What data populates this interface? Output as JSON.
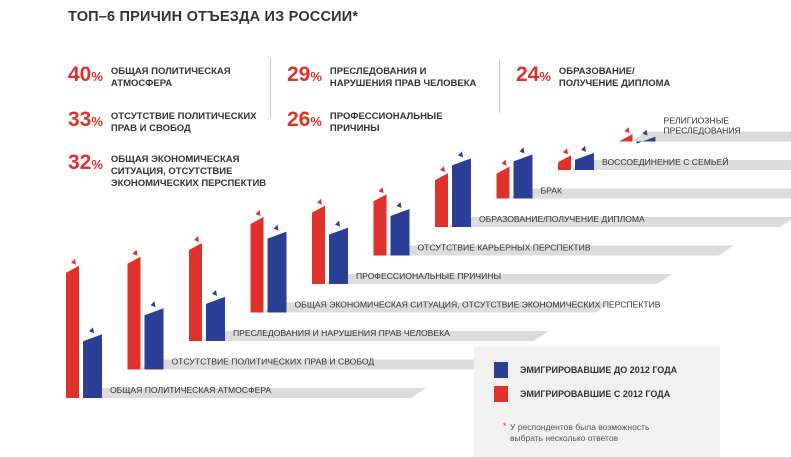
{
  "title": "ТОП–6 ПРИЧИН ОТЪЕЗДА ИЗ РОССИИ*",
  "top_reasons": [
    {
      "value": "40",
      "unit": "%",
      "label": "ОБЩАЯ ПОЛИТИЧЕСКАЯ\nАТМОСФЕРА"
    },
    {
      "value": "33",
      "unit": "%",
      "label": "ОТСУТСТВИЕ ПОЛИТИЧЕСКИХ\nПРАВ И СВОБОД"
    },
    {
      "value": "32",
      "unit": "%",
      "label": "ОБЩАЯ ЭКОНОМИЧЕСКАЯ\nСИТУАЦИЯ, ОТСУТСТВИЕ\nЭКОНОМИЧЕСКИХ ПЕРСПЕКТИВ"
    },
    {
      "value": "29",
      "unit": "%",
      "label": "ПРЕСЛЕДОВАНИЯ И\nНАРУШЕНИЯ ПРАВ ЧЕЛОВЕКА"
    },
    {
      "value": "26",
      "unit": "%",
      "label": "ПРОФЕССИОНАЛЬНЫЕ\nПРИЧИНЫ"
    },
    {
      "value": "24",
      "unit": "%",
      "label": "ОБРАЗОВАНИЕ/\nПОЛУЧЕНИЕ ДИПЛОМА"
    }
  ],
  "legend": {
    "before": "ЭМИГРИРОВАВШИЕ ДО 2012 ГОДА",
    "after": "ЭМИГРИРОВАВШИЕ С 2012 ГОДА",
    "note_star": "*",
    "note": "У респондентов была возможность\nвыбрать несколько ответов"
  },
  "colors": {
    "before": "#2a3f95",
    "after": "#e0322d",
    "shadow": "#dcdcdc",
    "label": "#333333"
  },
  "chart_data": {
    "type": "bar",
    "categories": [
      "ОБЩАЯ ПОЛИТИЧЕСКАЯ АТМОСФЕРА",
      "ОТСУТСТВИЕ ПОЛИТИЧЕСКИХ ПРАВ И СВОБОД",
      "ПРЕСЛЕДОВАНИЯ И НАРУШЕНИЯ ПРАВ ЧЕЛОВЕКА",
      "ОБЩАЯ ЭКОНОМИЧЕСКАЯ СИТУАЦИЯ, ОТСУТСТВИЕ ЭКОНОМИЧЕСКИХ ПЕРСПЕКТИВ",
      "ПРОФЕССИОНАЛЬНЫЕ ПРИЧИНЫ",
      "ОТСУТСТВИЕ КАРЬЕРНЫХ ПЕРСПЕКТИВ",
      "ОБРАЗОВАНИЕ/ПОЛУЧЕНИЕ ДИПЛОМА",
      "БРАК",
      "ВОССОЕДИНЕНИЕ С СЕМЬЕЙ",
      "РЕЛИГИОЗНЫЕ\nПРЕСЛЕДОВАНИЯ"
    ],
    "series": [
      {
        "name": "ЭМИГРИРОВАВШИЕ С 2012 ГОДА",
        "values": [
          54,
          46,
          40,
          39,
          32,
          25,
          22,
          13,
          6,
          3
        ]
      },
      {
        "name": "ЭМИГРИРОВАВШИЕ ДО 2012 ГОДА",
        "values": [
          26,
          25,
          18,
          33,
          23,
          19,
          28,
          18,
          7,
          2
        ]
      }
    ]
  }
}
